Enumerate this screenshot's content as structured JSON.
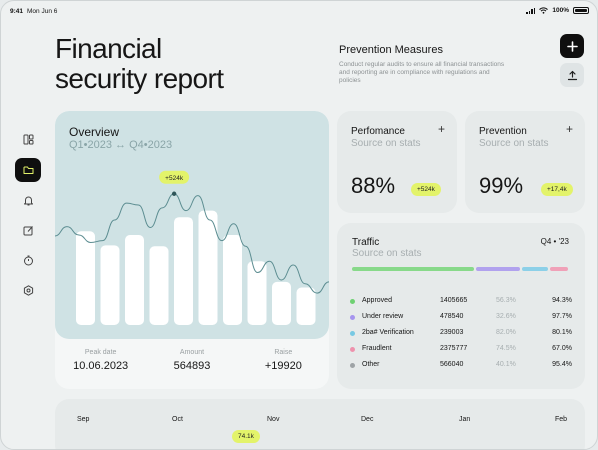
{
  "status_bar": {
    "time": "9:41",
    "date": "Mon Jun 6",
    "battery": "100%"
  },
  "header": {
    "title_line1": "Financial",
    "title_line2": "security report",
    "prevention_title": "Prevention Measures",
    "prevention_desc": "Conduct regular audits to ensure all financial transactions and reporting are in compliance with regulations and policies",
    "add_icon": "plus-icon",
    "share_icon": "upload-icon"
  },
  "sidebar": {
    "items": [
      {
        "icon": "dashboard-icon",
        "active": false
      },
      {
        "icon": "folder-icon",
        "active": true
      },
      {
        "icon": "bell-icon",
        "active": false
      },
      {
        "icon": "edit-icon",
        "active": false
      },
      {
        "icon": "timer-icon",
        "active": false
      },
      {
        "icon": "settings-icon",
        "active": false
      }
    ]
  },
  "overview": {
    "title": "Overview",
    "subtitle": "Q1•2023 ↔ Q4•2023",
    "peak_label": "+524k",
    "stats": [
      {
        "label": "Peak date",
        "value": "10.06.2023"
      },
      {
        "label": "Amount",
        "value": "564893"
      },
      {
        "label": "Raise",
        "value": "+19920"
      }
    ]
  },
  "chart_data": {
    "type": "bar",
    "title": "Overview",
    "subtitle": "Q1•2023 ↔ Q4•2023",
    "values": [
      100,
      85,
      96,
      84,
      115,
      122,
      96,
      68,
      46,
      40
    ],
    "line": [
      95,
      105,
      96,
      88,
      90,
      112,
      130,
      128,
      104,
      125,
      140,
      122,
      138,
      112,
      90,
      108,
      84,
      56,
      68,
      48,
      64,
      44,
      34,
      46
    ],
    "annotation": "+524k",
    "ylim": [
      0,
      160
    ],
    "grid": false
  },
  "performance": {
    "title": "Perfomance",
    "subtitle": "Source on stats",
    "value": "88%",
    "badge": "+524k"
  },
  "prevention": {
    "title": "Prevention",
    "subtitle": "Source on stats",
    "value": "99%",
    "badge": "+17,4k"
  },
  "traffic": {
    "title": "Traffic",
    "subtitle": "Source on stats",
    "period": "Q4 • '23",
    "segments": [
      {
        "color": "#88d98a",
        "share": 0.61
      },
      {
        "color": "#b1a2ee",
        "share": 0.22
      },
      {
        "color": "#8cd0e8",
        "share": 0.13
      },
      {
        "color": "#f0a1b8",
        "share": 0.09
      }
    ],
    "rows": [
      {
        "name": "Approved",
        "count": "1405665",
        "pct_a": "56.3%",
        "pct_b": "94.3%",
        "color": "#6ed172"
      },
      {
        "name": "Under review",
        "count": "478540",
        "pct_a": "32.6%",
        "pct_b": "97.7%",
        "color": "#a695ee"
      },
      {
        "name": "2ba# Verification",
        "count": "239003",
        "pct_a": "82.0%",
        "pct_b": "80.1%",
        "color": "#78c9e3"
      },
      {
        "name": "Fraudlent",
        "count": "2375777",
        "pct_a": "74.5%",
        "pct_b": "67.0%",
        "color": "#ee92ad"
      },
      {
        "name": "Other",
        "count": "566040",
        "pct_a": "40.1%",
        "pct_b": "95.4%",
        "color": "#9ea3a6"
      }
    ]
  },
  "timeline": {
    "months": [
      "Sep",
      "Oct",
      "Nov",
      "Dec",
      "Jan",
      "Feb"
    ],
    "badge": "74.1k"
  }
}
